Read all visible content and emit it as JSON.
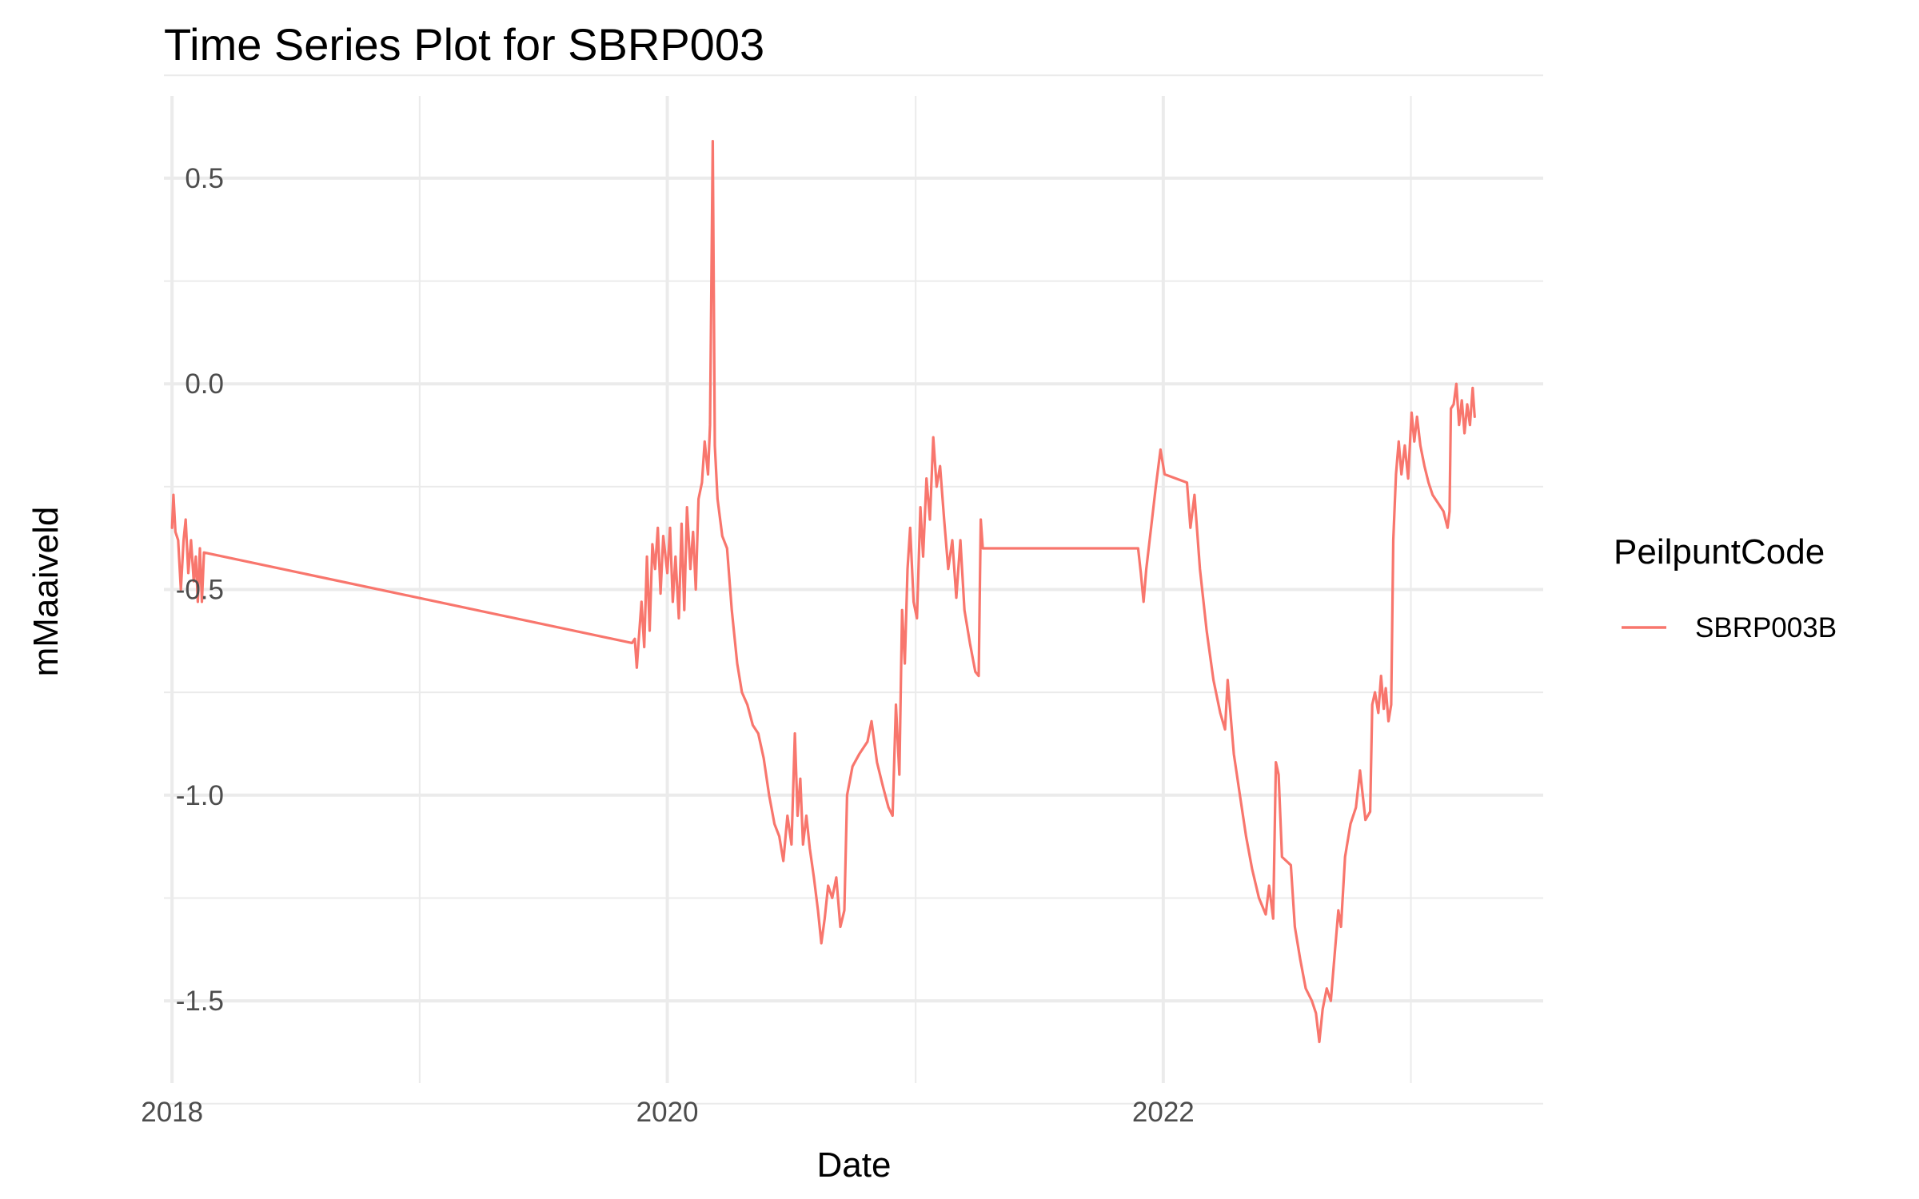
{
  "chart_data": {
    "type": "line",
    "title": "Time Series Plot for SBRP003",
    "xlabel": "Date",
    "ylabel": "mMaaiveld",
    "x_axis_type": "date",
    "x_ticks": [
      "2018",
      "2020",
      "2022"
    ],
    "xlim": [
      "2017-12-20",
      "2023-07-15"
    ],
    "y_ticks": [
      0.5,
      0.0,
      -0.5,
      -1.0,
      -1.5
    ],
    "y_tick_labels": [
      "0.5",
      "0.0",
      "-0.5",
      "-1.0",
      "-1.5"
    ],
    "ylim": [
      -1.7,
      0.7
    ],
    "grid": true,
    "legend": {
      "title": "PeilpuntCode",
      "position": "right"
    },
    "series": [
      {
        "name": "SBRP003B",
        "color": "#F8766D",
        "points": [
          [
            "2018-01-01",
            -0.35
          ],
          [
            "2018-01-03",
            -0.27
          ],
          [
            "2018-01-06",
            -0.36
          ],
          [
            "2018-01-10",
            -0.38
          ],
          [
            "2018-01-14",
            -0.5
          ],
          [
            "2018-01-18",
            -0.38
          ],
          [
            "2018-01-21",
            -0.33
          ],
          [
            "2018-01-25",
            -0.46
          ],
          [
            "2018-01-29",
            -0.38
          ],
          [
            "2018-02-02",
            -0.48
          ],
          [
            "2018-02-05",
            -0.42
          ],
          [
            "2018-02-08",
            -0.53
          ],
          [
            "2018-02-11",
            -0.4
          ],
          [
            "2018-02-14",
            -0.53
          ],
          [
            "2018-02-17",
            -0.41
          ],
          [
            "2019-11-10",
            -0.63
          ],
          [
            "2019-11-14",
            -0.62
          ],
          [
            "2019-11-17",
            -0.69
          ],
          [
            "2019-11-20",
            -0.62
          ],
          [
            "2019-11-24",
            -0.53
          ],
          [
            "2019-11-28",
            -0.64
          ],
          [
            "2019-12-02",
            -0.42
          ],
          [
            "2019-12-06",
            -0.6
          ],
          [
            "2019-12-10",
            -0.39
          ],
          [
            "2019-12-14",
            -0.45
          ],
          [
            "2019-12-18",
            -0.35
          ],
          [
            "2019-12-22",
            -0.51
          ],
          [
            "2019-12-26",
            -0.37
          ],
          [
            "2020-01-01",
            -0.46
          ],
          [
            "2020-01-05",
            -0.35
          ],
          [
            "2020-01-09",
            -0.53
          ],
          [
            "2020-01-13",
            -0.42
          ],
          [
            "2020-01-18",
            -0.57
          ],
          [
            "2020-01-22",
            -0.34
          ],
          [
            "2020-01-26",
            -0.55
          ],
          [
            "2020-01-30",
            -0.3
          ],
          [
            "2020-02-04",
            -0.45
          ],
          [
            "2020-02-08",
            -0.36
          ],
          [
            "2020-02-12",
            -0.5
          ],
          [
            "2020-02-16",
            -0.28
          ],
          [
            "2020-02-21",
            -0.24
          ],
          [
            "2020-02-25",
            -0.14
          ],
          [
            "2020-03-01",
            -0.22
          ],
          [
            "2020-03-04",
            -0.1
          ],
          [
            "2020-03-08",
            0.59
          ],
          [
            "2020-03-11",
            -0.15
          ],
          [
            "2020-03-15",
            -0.28
          ],
          [
            "2020-03-22",
            -0.37
          ],
          [
            "2020-03-29",
            -0.4
          ],
          [
            "2020-04-05",
            -0.55
          ],
          [
            "2020-04-13",
            -0.68
          ],
          [
            "2020-04-20",
            -0.75
          ],
          [
            "2020-04-28",
            -0.78
          ],
          [
            "2020-05-06",
            -0.83
          ],
          [
            "2020-05-14",
            -0.85
          ],
          [
            "2020-05-22",
            -0.91
          ],
          [
            "2020-05-30",
            -1.0
          ],
          [
            "2020-06-07",
            -1.07
          ],
          [
            "2020-06-14",
            -1.1
          ],
          [
            "2020-06-20",
            -1.16
          ],
          [
            "2020-06-26",
            -1.05
          ],
          [
            "2020-07-02",
            -1.12
          ],
          [
            "2020-07-07",
            -0.85
          ],
          [
            "2020-07-11",
            -1.05
          ],
          [
            "2020-07-15",
            -0.96
          ],
          [
            "2020-07-19",
            -1.12
          ],
          [
            "2020-07-24",
            -1.05
          ],
          [
            "2020-07-29",
            -1.13
          ],
          [
            "2020-08-04",
            -1.2
          ],
          [
            "2020-08-10",
            -1.28
          ],
          [
            "2020-08-15",
            -1.36
          ],
          [
            "2020-08-20",
            -1.3
          ],
          [
            "2020-08-25",
            -1.22
          ],
          [
            "2020-08-31",
            -1.25
          ],
          [
            "2020-09-06",
            -1.2
          ],
          [
            "2020-09-12",
            -1.32
          ],
          [
            "2020-09-18",
            -1.28
          ],
          [
            "2020-09-22",
            -1.0
          ],
          [
            "2020-09-30",
            -0.93
          ],
          [
            "2020-10-10",
            -0.9
          ],
          [
            "2020-10-22",
            -0.87
          ],
          [
            "2020-10-28",
            -0.82
          ],
          [
            "2020-11-05",
            -0.92
          ],
          [
            "2020-11-14",
            -0.98
          ],
          [
            "2020-11-22",
            -1.03
          ],
          [
            "2020-11-28",
            -1.05
          ],
          [
            "2020-12-03",
            -0.78
          ],
          [
            "2020-12-08",
            -0.95
          ],
          [
            "2020-12-12",
            -0.55
          ],
          [
            "2020-12-16",
            -0.68
          ],
          [
            "2020-12-20",
            -0.45
          ],
          [
            "2020-12-24",
            -0.35
          ],
          [
            "2020-12-29",
            -0.53
          ],
          [
            "2021-01-03",
            -0.57
          ],
          [
            "2021-01-08",
            -0.3
          ],
          [
            "2021-01-12",
            -0.42
          ],
          [
            "2021-01-17",
            -0.23
          ],
          [
            "2021-01-22",
            -0.33
          ],
          [
            "2021-01-27",
            -0.13
          ],
          [
            "2021-02-01",
            -0.25
          ],
          [
            "2021-02-06",
            -0.2
          ],
          [
            "2021-02-12",
            -0.33
          ],
          [
            "2021-02-18",
            -0.45
          ],
          [
            "2021-02-24",
            -0.38
          ],
          [
            "2021-03-02",
            -0.52
          ],
          [
            "2021-03-08",
            -0.38
          ],
          [
            "2021-03-14",
            -0.55
          ],
          [
            "2021-03-22",
            -0.63
          ],
          [
            "2021-03-30",
            -0.7
          ],
          [
            "2021-04-04",
            -0.71
          ],
          [
            "2021-04-07",
            -0.33
          ],
          [
            "2021-04-10",
            -0.4
          ],
          [
            "2021-11-25",
            -0.4
          ],
          [
            "2021-11-29",
            -0.46
          ],
          [
            "2021-12-03",
            -0.53
          ],
          [
            "2021-12-07",
            -0.45
          ],
          [
            "2021-12-14",
            -0.35
          ],
          [
            "2021-12-21",
            -0.25
          ],
          [
            "2021-12-28",
            -0.16
          ],
          [
            "2022-01-03",
            -0.22
          ],
          [
            "2022-02-05",
            -0.24
          ],
          [
            "2022-02-10",
            -0.35
          ],
          [
            "2022-02-16",
            -0.27
          ],
          [
            "2022-02-24",
            -0.45
          ],
          [
            "2022-03-06",
            -0.6
          ],
          [
            "2022-03-16",
            -0.72
          ],
          [
            "2022-03-26",
            -0.8
          ],
          [
            "2022-04-02",
            -0.84
          ],
          [
            "2022-04-06",
            -0.72
          ],
          [
            "2022-04-15",
            -0.9
          ],
          [
            "2022-04-24",
            -1.0
          ],
          [
            "2022-05-03",
            -1.1
          ],
          [
            "2022-05-12",
            -1.18
          ],
          [
            "2022-05-22",
            -1.25
          ],
          [
            "2022-06-01",
            -1.29
          ],
          [
            "2022-06-06",
            -1.22
          ],
          [
            "2022-06-12",
            -1.3
          ],
          [
            "2022-06-16",
            -0.92
          ],
          [
            "2022-06-20",
            -0.95
          ],
          [
            "2022-06-25",
            -1.15
          ],
          [
            "2022-07-08",
            -1.17
          ],
          [
            "2022-07-14",
            -1.32
          ],
          [
            "2022-07-22",
            -1.4
          ],
          [
            "2022-07-30",
            -1.47
          ],
          [
            "2022-08-08",
            -1.5
          ],
          [
            "2022-08-14",
            -1.53
          ],
          [
            "2022-08-19",
            -1.6
          ],
          [
            "2022-08-24",
            -1.52
          ],
          [
            "2022-08-30",
            -1.47
          ],
          [
            "2022-09-05",
            -1.5
          ],
          [
            "2022-09-11",
            -1.38
          ],
          [
            "2022-09-16",
            -1.28
          ],
          [
            "2022-09-20",
            -1.32
          ],
          [
            "2022-09-26",
            -1.15
          ],
          [
            "2022-10-04",
            -1.07
          ],
          [
            "2022-10-12",
            -1.03
          ],
          [
            "2022-10-18",
            -0.94
          ],
          [
            "2022-10-26",
            -1.06
          ],
          [
            "2022-11-02",
            -1.04
          ],
          [
            "2022-11-05",
            -0.78
          ],
          [
            "2022-11-09",
            -0.75
          ],
          [
            "2022-11-14",
            -0.8
          ],
          [
            "2022-11-18",
            -0.71
          ],
          [
            "2022-11-22",
            -0.79
          ],
          [
            "2022-11-25",
            -0.74
          ],
          [
            "2022-11-29",
            -0.82
          ],
          [
            "2022-12-03",
            -0.78
          ],
          [
            "2022-12-06",
            -0.38
          ],
          [
            "2022-12-10",
            -0.22
          ],
          [
            "2022-12-14",
            -0.14
          ],
          [
            "2022-12-18",
            -0.22
          ],
          [
            "2022-12-23",
            -0.15
          ],
          [
            "2022-12-28",
            -0.23
          ],
          [
            "2023-01-02",
            -0.07
          ],
          [
            "2023-01-06",
            -0.14
          ],
          [
            "2023-01-10",
            -0.08
          ],
          [
            "2023-01-15",
            -0.15
          ],
          [
            "2023-01-21",
            -0.2
          ],
          [
            "2023-01-27",
            -0.24
          ],
          [
            "2023-02-02",
            -0.27
          ],
          [
            "2023-02-10",
            -0.29
          ],
          [
            "2023-02-18",
            -0.31
          ],
          [
            "2023-02-24",
            -0.35
          ],
          [
            "2023-02-27",
            -0.31
          ],
          [
            "2023-03-01",
            -0.06
          ],
          [
            "2023-03-05",
            -0.05
          ],
          [
            "2023-03-09",
            0.0
          ],
          [
            "2023-03-13",
            -0.1
          ],
          [
            "2023-03-17",
            -0.04
          ],
          [
            "2023-03-21",
            -0.12
          ],
          [
            "2023-03-25",
            -0.05
          ],
          [
            "2023-03-29",
            -0.1
          ],
          [
            "2023-04-02",
            -0.01
          ],
          [
            "2023-04-05",
            -0.08
          ]
        ]
      }
    ]
  }
}
